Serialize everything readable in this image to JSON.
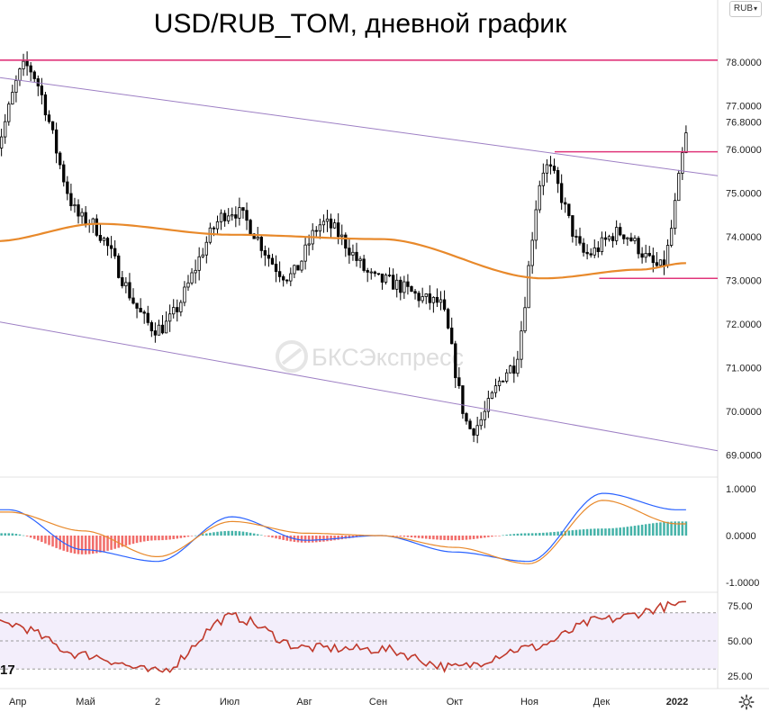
{
  "chart_data": {
    "type": "candlestick",
    "title": "USD/RUB_TOM, дневной график",
    "currency_selector": "RUB",
    "watermark": "БКСЭкспресс",
    "x_labels": [
      "Апр",
      "Май",
      "2",
      "Июл",
      "Авг",
      "Сен",
      "Окт",
      "Ноя",
      "Дек",
      "2022"
    ],
    "price_panel": {
      "ylim": [
        68.6,
        78.5
      ],
      "y_ticks": [
        "78.0000",
        "77.0000",
        "76.0000",
        "75.0000",
        "74.0000",
        "73.0000",
        "72.0000",
        "71.0000",
        "70.0000",
        "69.0000"
      ],
      "last_price": "76.8000",
      "up_color": "#ffffff",
      "down_color": "#000000",
      "key_points": [
        {
          "label": "Апр",
          "value": 76.0
        },
        {
          "label": "Апр",
          "value": 77.9
        },
        {
          "label": "Май",
          "value": 74.4
        },
        {
          "label": "2",
          "value": 71.9
        },
        {
          "label": "Июл",
          "value": 74.6
        },
        {
          "label": "Авг",
          "value": 73.1
        },
        {
          "label": "Авг",
          "value": 74.3
        },
        {
          "label": "Сен",
          "value": 73.0
        },
        {
          "label": "Окт",
          "value": 72.5
        },
        {
          "label": "Окт",
          "value": 69.6
        },
        {
          "label": "Ноя",
          "value": 71.0
        },
        {
          "label": "Ноя",
          "value": 75.6
        },
        {
          "label": "Дек",
          "value": 73.6
        },
        {
          "label": "Дек",
          "value": 74.1
        },
        {
          "label": "2022",
          "value": 73.3
        },
        {
          "label": "2022",
          "value": 76.8
        }
      ],
      "moving_average": {
        "color": "#e8892b",
        "start": 73.9,
        "mid": 74.3,
        "low": 73.05,
        "end": 73.4
      },
      "resistance_levels": [
        78.05,
        75.95
      ],
      "support_level": 73.05,
      "level_color": "#e0357a",
      "channel_color": "#9d7fc4"
    },
    "macd_panel": {
      "ylim": [
        -1.15,
        1.15
      ],
      "y_ticks": [
        "1.0000",
        "0.0000",
        "-1.0000"
      ],
      "macd_color": "#2962ff",
      "signal_color": "#e8892b",
      "hist_pos_color": "#26a69a",
      "hist_neg_color": "#ef5350",
      "key_points": [
        {
          "label": "Апр",
          "macd": 0.55,
          "signal": 0.5
        },
        {
          "label": "Май",
          "macd": -0.3,
          "signal": 0.1
        },
        {
          "label": "2",
          "macd": -0.55,
          "signal": -0.45
        },
        {
          "label": "Июл",
          "macd": 0.4,
          "signal": 0.3
        },
        {
          "label": "Авг",
          "macd": -0.1,
          "signal": 0.05
        },
        {
          "label": "Сен",
          "macd": 0.0,
          "signal": 0.0
        },
        {
          "label": "Окт",
          "macd": -0.35,
          "signal": -0.25
        },
        {
          "label": "Ноя",
          "macd": -0.55,
          "signal": -0.6
        },
        {
          "label": "Дек",
          "macd": 0.9,
          "signal": 0.75
        },
        {
          "label": "2022",
          "macd": 0.55,
          "signal": 0.25
        }
      ]
    },
    "rsi_panel": {
      "ylim": [
        18,
        82
      ],
      "y_ticks": [
        "75.00",
        "50.00",
        "25.00"
      ],
      "band": [
        30,
        70
      ],
      "line_color": "#c0392b",
      "band_color": "#f3eefb",
      "key_points": [
        {
          "label": "Апр",
          "value": 62
        },
        {
          "label": "Май",
          "value": 40
        },
        {
          "label": "2",
          "value": 28
        },
        {
          "label": "Июл",
          "value": 67
        },
        {
          "label": "Авг",
          "value": 45
        },
        {
          "label": "Сен",
          "value": 44
        },
        {
          "label": "Окт",
          "value": 31
        },
        {
          "label": "Ноя",
          "value": 45
        },
        {
          "label": "Дек",
          "value": 65
        },
        {
          "label": "2022",
          "value": 75
        }
      ]
    }
  }
}
